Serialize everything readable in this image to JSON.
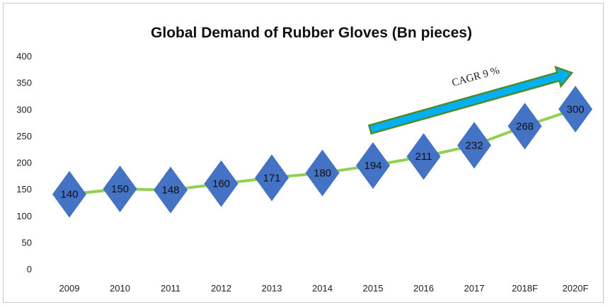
{
  "chart_data": {
    "type": "line",
    "title": "Global Demand of Rubber Gloves (Bn pieces)",
    "xlabel": "",
    "ylabel": "",
    "ylim": [
      0,
      400
    ],
    "yticks": [
      0,
      50,
      100,
      150,
      200,
      250,
      300,
      350,
      400
    ],
    "grid": false,
    "legend": "none",
    "categories": [
      "2009",
      "2010",
      "2011",
      "2012",
      "2013",
      "2014",
      "2015",
      "2016",
      "2017",
      "2018F",
      "2020F"
    ],
    "values": [
      140,
      150,
      148,
      160,
      171,
      180,
      194,
      211,
      232,
      268,
      300
    ],
    "data_labels": [
      "140",
      "150",
      "148",
      "160",
      "171",
      "180",
      "194",
      "211",
      "232",
      "268",
      "300"
    ],
    "annotation": {
      "text": "CAGR 9 %"
    },
    "colors": {
      "line": "#92d050",
      "marker": "#4472c4",
      "arrow_fill": "#00b0f0",
      "arrow_border": "#4e8a2a"
    }
  }
}
